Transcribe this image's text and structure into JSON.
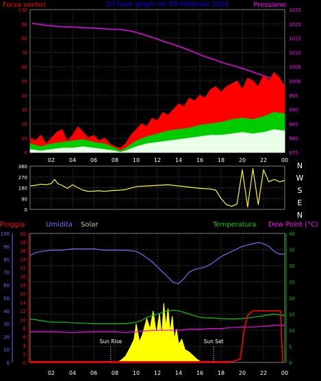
{
  "colors": {
    "wind_speed": "#ff0000",
    "wind_avg": "#00cc00",
    "wind_min": "#e8ffe8",
    "pressure": "#ff00ff",
    "direction": "#ffff00",
    "rain": "#ff0000",
    "humidity": "#6f6fff",
    "solar": "#ffff00",
    "temperature": "#00cc00",
    "dew_point": "#ff00ff",
    "title": "#0000ff",
    "axis_green": "#00c000",
    "grid": "#4a4a4a"
  },
  "chart_data": [
    {
      "id": "wind-pressure",
      "type": "line",
      "title": "24 hour graph for  09 Febbraio 2016",
      "left_label": "Forza vento)",
      "right_label": "Pressione",
      "left_ticks": [
        "0",
        "10",
        "20",
        "30",
        "40",
        "50",
        "60",
        "70",
        "80",
        "90",
        "100"
      ],
      "right_ticks": [
        "975",
        "980",
        "985",
        "990",
        "995",
        "1000",
        "1005",
        "1010",
        "1015",
        "1020",
        "1025"
      ],
      "ylim_left": [
        0,
        100
      ],
      "ylim_right": [
        975,
        1025
      ],
      "x_ticks": [
        "02",
        "04",
        "06",
        "08",
        "10",
        "12",
        "14",
        "16",
        "18",
        "20",
        "22",
        "00"
      ],
      "xlim": [
        0,
        24
      ],
      "series": [
        {
          "role": "pressure",
          "axis": "right",
          "x": [
            0.2,
            1.5,
            3,
            4.5,
            6,
            7.5,
            8.5,
            9.5,
            10.5,
            11.5,
            12.5,
            13.5,
            14.5,
            15.5,
            16.5,
            17.5,
            18.5,
            19.5,
            20.5,
            21.5,
            22.5,
            23.2,
            23.8
          ],
          "y": [
            1020.2,
            1019.5,
            1019,
            1018.8,
            1018.5,
            1018.2,
            1018,
            1017.5,
            1016.5,
            1015.3,
            1014,
            1012.8,
            1011.5,
            1010,
            1008.5,
            1007.3,
            1006,
            1005,
            1003.8,
            1002.5,
            1001.2,
            999.8,
            997.5
          ]
        },
        {
          "role": "wind_speed",
          "axis": "left",
          "x": [
            0,
            0.5,
            1,
            1.5,
            2,
            2.5,
            3,
            3.5,
            4,
            4.5,
            5,
            5.5,
            6,
            6.5,
            7,
            7.5,
            8,
            8.5,
            9,
            9.5,
            10,
            10.5,
            11,
            11.5,
            12,
            12.5,
            13,
            13.5,
            14,
            14.5,
            15,
            15.5,
            16,
            16.5,
            17,
            17.5,
            18,
            18.5,
            19,
            19.5,
            20,
            20.5,
            21,
            21.5,
            22,
            22.5,
            23,
            23.5,
            24
          ],
          "y": [
            10,
            8,
            12,
            6,
            10,
            14,
            16,
            8,
            12,
            18,
            14,
            10,
            12,
            8,
            10,
            6,
            4,
            3,
            6,
            12,
            16,
            20,
            18,
            24,
            22,
            28,
            26,
            30,
            34,
            32,
            38,
            36,
            40,
            38,
            44,
            46,
            42,
            46,
            48,
            50,
            44,
            52,
            50,
            46,
            54,
            50,
            56,
            52,
            46
          ]
        },
        {
          "role": "wind_avg",
          "axis": "left",
          "x": [
            0,
            1,
            2,
            3,
            4,
            5,
            6,
            7,
            8,
            8.5,
            9,
            10,
            11,
            12,
            13,
            14,
            15,
            16,
            17,
            18,
            19,
            20,
            21,
            22,
            23,
            24
          ],
          "y": [
            6,
            4,
            6,
            7,
            8,
            9,
            7,
            6,
            3,
            1,
            3,
            8,
            11,
            13,
            15,
            16,
            17,
            19,
            20,
            21,
            23,
            24,
            23,
            25,
            28,
            27
          ]
        },
        {
          "role": "wind_min",
          "axis": "left",
          "x": [
            0,
            1,
            2,
            3,
            4,
            5,
            6,
            7,
            8,
            8.5,
            9,
            10,
            11,
            12,
            13,
            14,
            15,
            16,
            17,
            18,
            19,
            20,
            21,
            22,
            23,
            24
          ],
          "y": [
            2,
            1,
            2,
            3,
            3,
            4,
            3,
            2,
            1,
            0,
            1,
            4,
            6,
            7,
            8,
            9,
            10,
            11,
            12,
            12,
            13,
            14,
            13,
            14,
            16,
            15
          ]
        }
      ]
    },
    {
      "id": "wind-direction",
      "type": "line",
      "left_ticks": [
        "0",
        "90",
        "180",
        "270",
        "360"
      ],
      "right_labels": [
        "N",
        "W",
        "S",
        "E",
        "N"
      ],
      "ylim": [
        0,
        360
      ],
      "xlim": [
        0,
        24
      ],
      "series": [
        {
          "role": "direction",
          "x": [
            0,
            0.5,
            1,
            1.5,
            2,
            2.3,
            2.6,
            3,
            3.5,
            4,
            4.5,
            5,
            5.5,
            6,
            6.5,
            7,
            7.5,
            8,
            8.5,
            9,
            10,
            11,
            12,
            13,
            14,
            15,
            16,
            17,
            17.5,
            18,
            18.5,
            19,
            19.5,
            20,
            20.5,
            21,
            21.5,
            22,
            22.5,
            23,
            23.5,
            24
          ],
          "y": [
            195,
            200,
            210,
            205,
            215,
            250,
            215,
            200,
            175,
            205,
            180,
            160,
            150,
            152,
            155,
            150,
            155,
            158,
            160,
            165,
            190,
            195,
            200,
            205,
            195,
            185,
            175,
            170,
            160,
            90,
            40,
            25,
            45,
            330,
            20,
            340,
            40,
            330,
            230,
            250,
            230,
            240
          ]
        }
      ]
    },
    {
      "id": "weather",
      "type": "line",
      "labels": {
        "rain": "Pioggia",
        "humidity": "Umidita",
        "solar": "Solar",
        "temperature": "Temperatura",
        "dew_point": "Dew Point (°C)"
      },
      "humidity_ticks": [
        "0",
        "10",
        "20",
        "30",
        "40",
        "50",
        "60",
        "70",
        "80",
        "90",
        "100"
      ],
      "rain_ticks": [
        "0",
        "2",
        "4",
        "6",
        "8",
        "10",
        "12",
        "14",
        "16",
        "18",
        "20",
        "22",
        "24",
        "26",
        "28",
        "30"
      ],
      "temp_ticks": [
        "0",
        "5",
        "10",
        "15",
        "20",
        "25",
        "30",
        "35",
        "40"
      ],
      "ylim_humidity": [
        0,
        100
      ],
      "ylim_rain": [
        0,
        30
      ],
      "ylim_temp": [
        0,
        40
      ],
      "x_ticks": [
        "02",
        "04",
        "06",
        "08",
        "10",
        "12",
        "14",
        "16",
        "18",
        "20",
        "22",
        "00"
      ],
      "xlim": [
        0,
        24
      ],
      "sun_rise": {
        "label": "Sun Rise",
        "x": 7.6
      },
      "sun_set": {
        "label": "Sun Set",
        "x": 17.3
      },
      "series": [
        {
          "role": "humidity",
          "axis": "humidity",
          "x": [
            0,
            0.5,
            1,
            2,
            3,
            4,
            5,
            6,
            7,
            8,
            9,
            10,
            10.5,
            11,
            11.5,
            12,
            12.5,
            13,
            13.5,
            14,
            14.5,
            15,
            15.5,
            16,
            16.5,
            17,
            17.5,
            18,
            19,
            20,
            21,
            21.5,
            22,
            22.5,
            23,
            23.5,
            24
          ],
          "y": [
            83,
            85,
            86,
            87,
            87,
            88,
            88,
            88,
            87,
            87,
            87,
            86,
            84,
            81,
            78,
            74,
            70,
            66,
            62,
            61,
            65,
            70,
            72,
            73,
            74,
            76,
            79,
            82,
            86,
            90,
            92,
            93,
            92,
            90,
            86,
            84,
            84
          ]
        },
        {
          "role": "temperature",
          "axis": "temp",
          "x": [
            0,
            1,
            2,
            3,
            4,
            5,
            6,
            7,
            8,
            9,
            10,
            10.5,
            11,
            11.5,
            12,
            12.5,
            13,
            13.5,
            14,
            14.5,
            15,
            15.5,
            16,
            16.5,
            17,
            18,
            19,
            20,
            21,
            22,
            23,
            24
          ],
          "y": [
            13.5,
            13,
            12.5,
            12.5,
            12.3,
            12.2,
            12,
            12,
            12,
            12,
            12.5,
            13,
            14,
            14.5,
            15,
            15.5,
            16,
            16.2,
            16,
            15.5,
            15,
            14.5,
            14,
            13.8,
            13.8,
            13.6,
            13.5,
            13.6,
            14,
            14.5,
            15,
            14.5
          ]
        },
        {
          "role": "dew_point",
          "axis": "temp",
          "x": [
            0,
            2,
            4,
            6,
            8,
            9,
            10,
            11,
            12,
            13,
            14,
            15,
            16,
            17,
            18,
            19,
            20,
            21,
            22,
            23,
            24
          ],
          "y": [
            9.5,
            9.5,
            9.3,
            9.5,
            9.5,
            9.3,
            9.5,
            9.8,
            10,
            10,
            10,
            10.3,
            10.3,
            10.5,
            10.5,
            10.8,
            11,
            11,
            11.2,
            11.5,
            11.5
          ]
        },
        {
          "role": "rain",
          "axis": "rain",
          "x": [
            0,
            18.5,
            19.2,
            19.8,
            20.2,
            20.5,
            21,
            22,
            23,
            23.6,
            23.8
          ],
          "y": [
            0,
            0,
            0.3,
            0.8,
            8,
            11,
            12,
            12,
            12,
            12,
            0
          ]
        },
        {
          "role": "solar",
          "axis": "humidity",
          "x": [
            8.2,
            8.6,
            9,
            9.4,
            9.8,
            10,
            10.3,
            10.6,
            11,
            11.3,
            11.6,
            11.9,
            12.2,
            12.4,
            12.6,
            12.8,
            13,
            13.2,
            13.4,
            13.6,
            13.8,
            14,
            14.3,
            14.6,
            15,
            15.4,
            15.8,
            16.2
          ],
          "y": [
            0,
            2,
            5,
            11,
            18,
            30,
            16,
            22,
            34,
            26,
            40,
            22,
            38,
            20,
            46,
            28,
            42,
            24,
            36,
            18,
            26,
            14,
            18,
            10,
            8,
            5,
            2,
            0
          ]
        }
      ]
    }
  ]
}
